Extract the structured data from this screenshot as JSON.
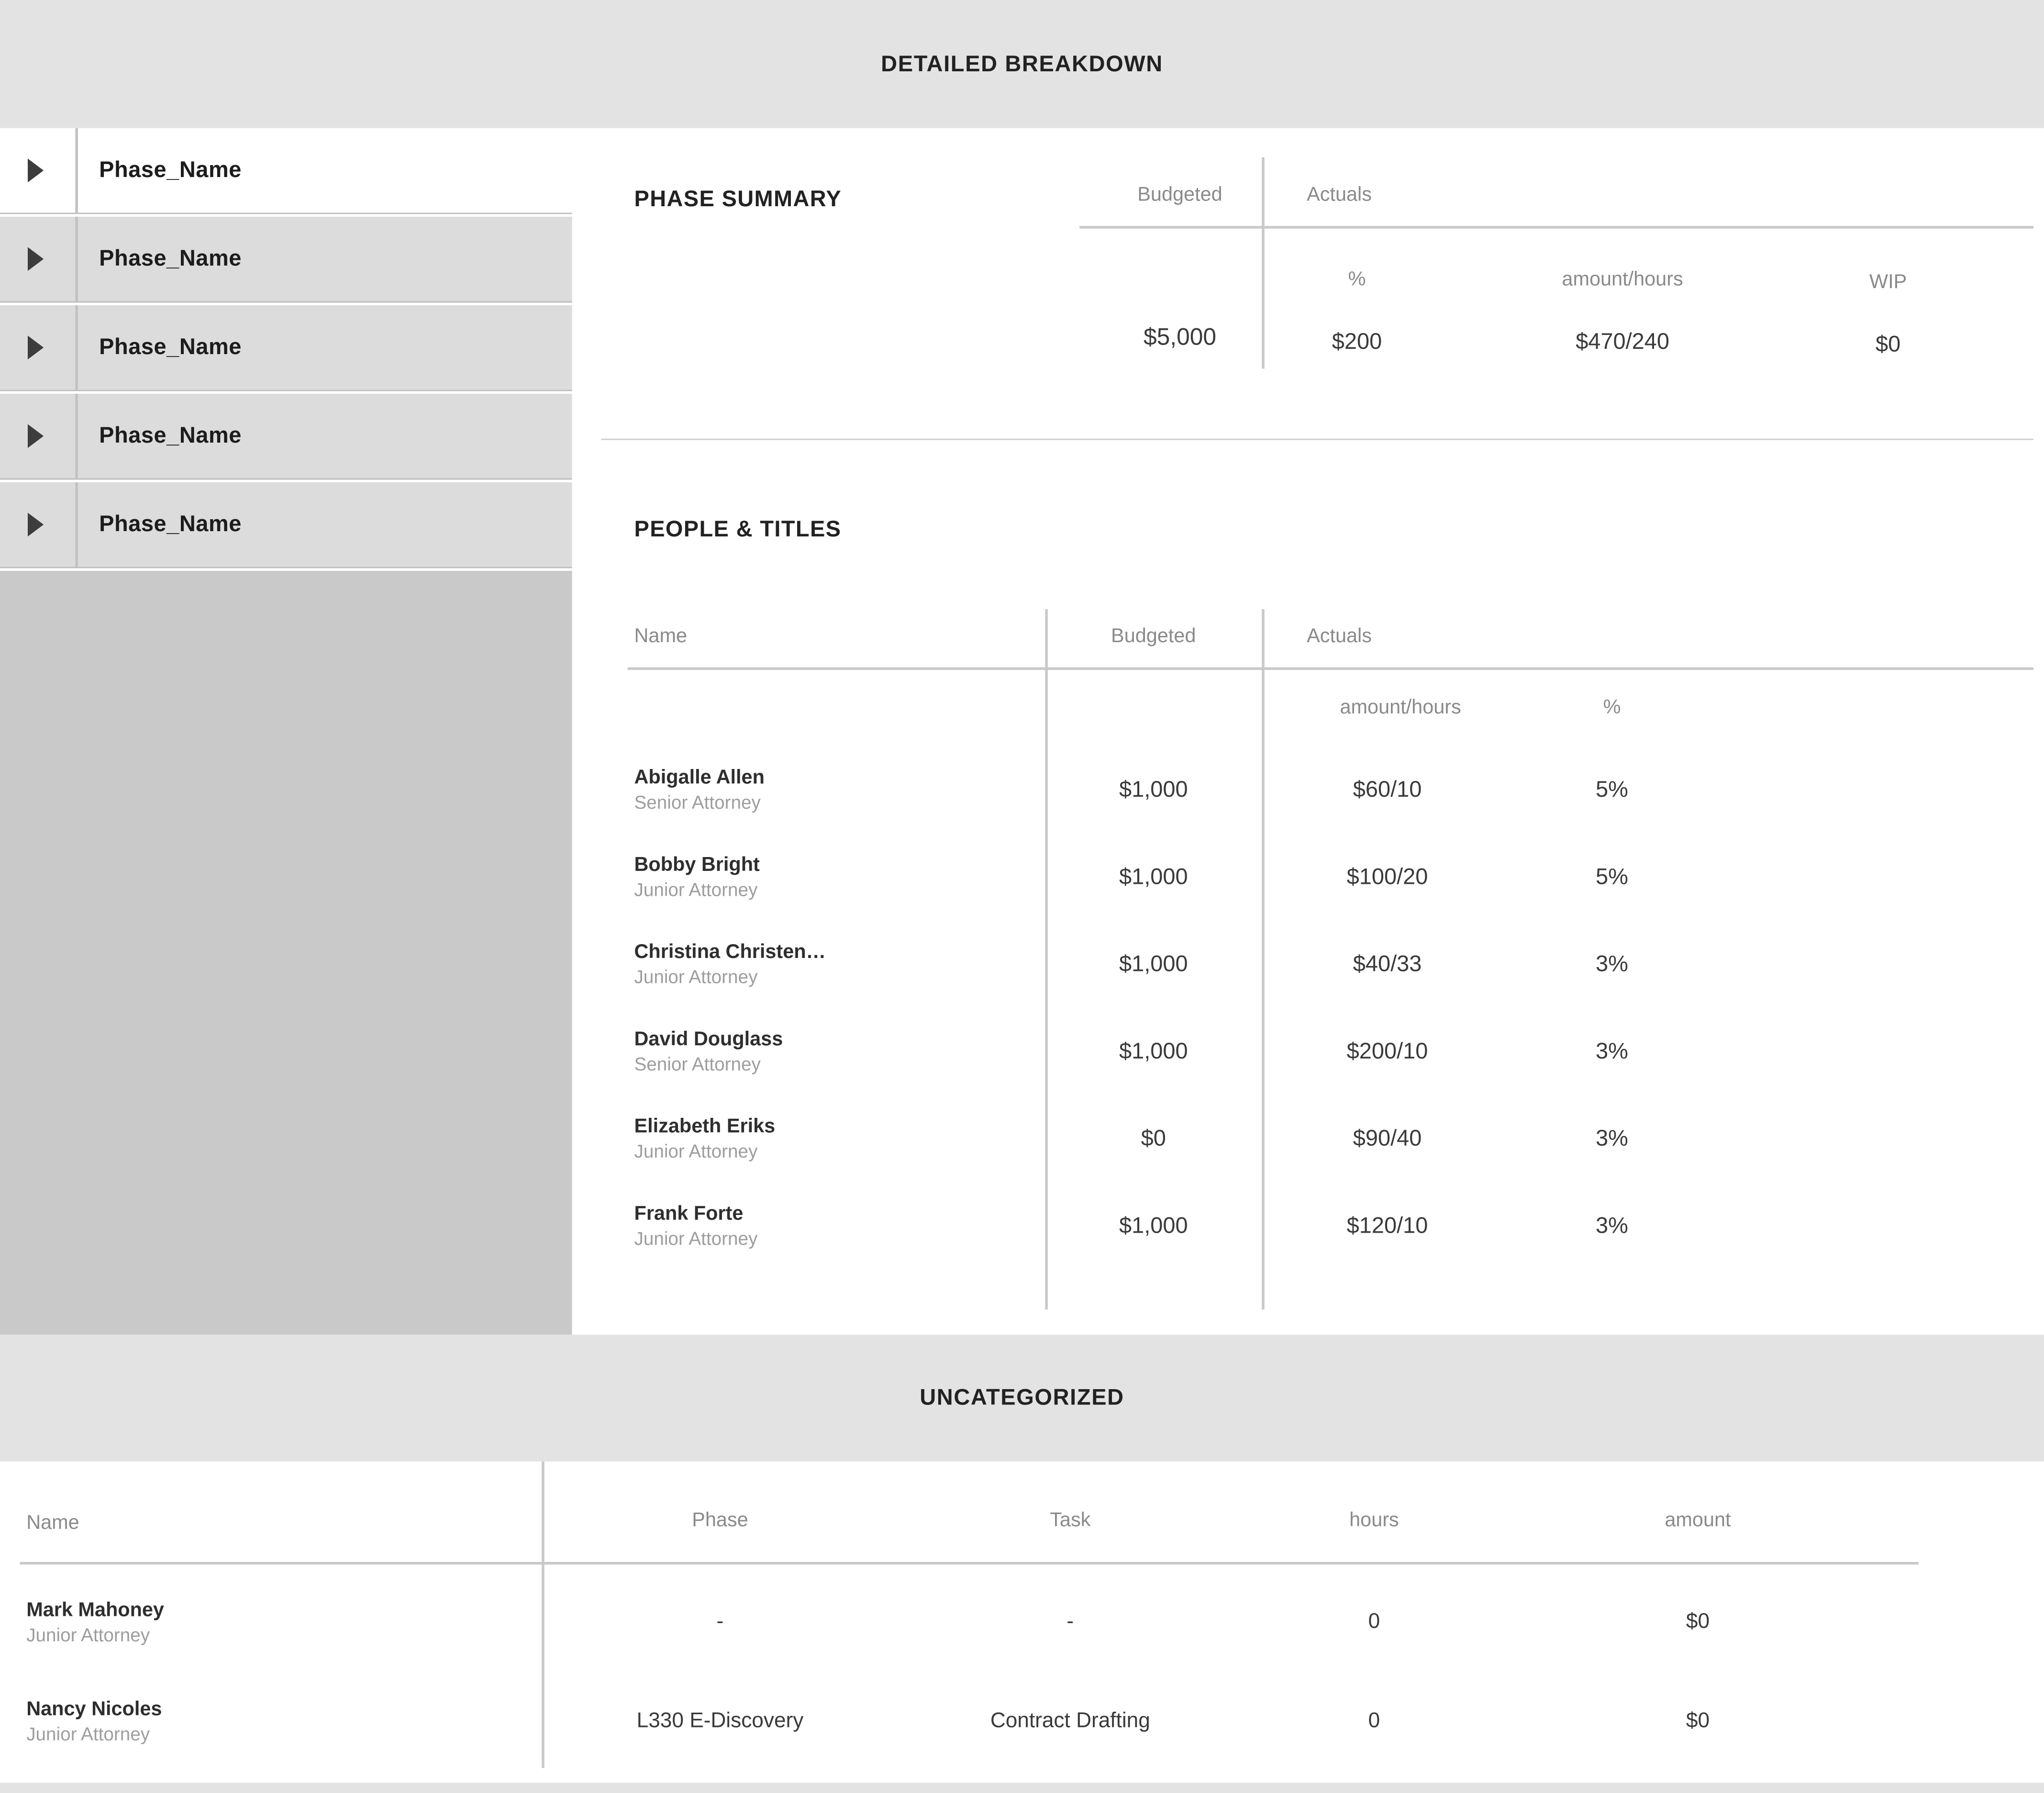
{
  "header": {
    "title": "DETAILED BREAKDOWN"
  },
  "colors": {
    "band_bg": "#e3e3e3",
    "sidebar_row_bg": "#dcdcdc",
    "sidebar_empty_bg": "#c9c9c9",
    "divider_line": "#c9c9c9",
    "header_text": "#8a8a8a",
    "value_text": "#3a3a3a",
    "title_text": "#222222",
    "muted_text": "#9d9d9d"
  },
  "sidebar": {
    "phases": [
      "Phase_Name",
      "Phase_Name",
      "Phase_Name",
      "Phase_Name",
      "Phase_Name"
    ]
  },
  "phase_summary": {
    "title": "PHASE SUMMARY",
    "columns": {
      "budgeted": "Budgeted",
      "actuals": "Actuals",
      "pct": "%",
      "amount_hours": "amount/hours",
      "wip": "WIP"
    },
    "values": {
      "budgeted": "$5,000",
      "pct": "$200",
      "amount_hours": "$470/240",
      "wip": "$0"
    }
  },
  "people_titles": {
    "title": "PEOPLE & TITLES",
    "columns": {
      "name": "Name",
      "budgeted": "Budgeted",
      "actuals": "Actuals",
      "amount_hours": "amount/hours",
      "pct": "%"
    },
    "rows": [
      {
        "name": "Abigalle Allen",
        "title": "Senior Attorney",
        "budgeted": "$1,000",
        "amount_hours": "$60/10",
        "pct": "5%"
      },
      {
        "name": "Bobby Bright",
        "title": "Junior Attorney",
        "budgeted": "$1,000",
        "amount_hours": "$100/20",
        "pct": "5%"
      },
      {
        "name": "Christina Christen…",
        "title": "Junior Attorney",
        "budgeted": "$1,000",
        "amount_hours": "$40/33",
        "pct": "3%"
      },
      {
        "name": "David Douglass",
        "title": "Senior Attorney",
        "budgeted": "$1,000",
        "amount_hours": "$200/10",
        "pct": "3%"
      },
      {
        "name": "Elizabeth Eriks",
        "title": "Junior Attorney",
        "budgeted": "$0",
        "amount_hours": "$90/40",
        "pct": "3%"
      },
      {
        "name": "Frank Forte",
        "title": "Junior Attorney",
        "budgeted": "$1,000",
        "amount_hours": "$120/10",
        "pct": "3%"
      }
    ]
  },
  "uncategorized": {
    "title": "UNCATEGORIZED",
    "columns": {
      "name": "Name",
      "phase": "Phase",
      "task": "Task",
      "hours": "hours",
      "amount": "amount"
    },
    "rows": [
      {
        "name": "Mark Mahoney",
        "title": "Junior Attorney",
        "phase": "-",
        "task": "-",
        "hours": "0",
        "amount": "$0"
      },
      {
        "name": "Nancy Nicoles",
        "title": "Junior Attorney",
        "phase": "L330 E-Discovery",
        "task": "Contract Drafting",
        "hours": "0",
        "amount": "$0"
      }
    ]
  }
}
